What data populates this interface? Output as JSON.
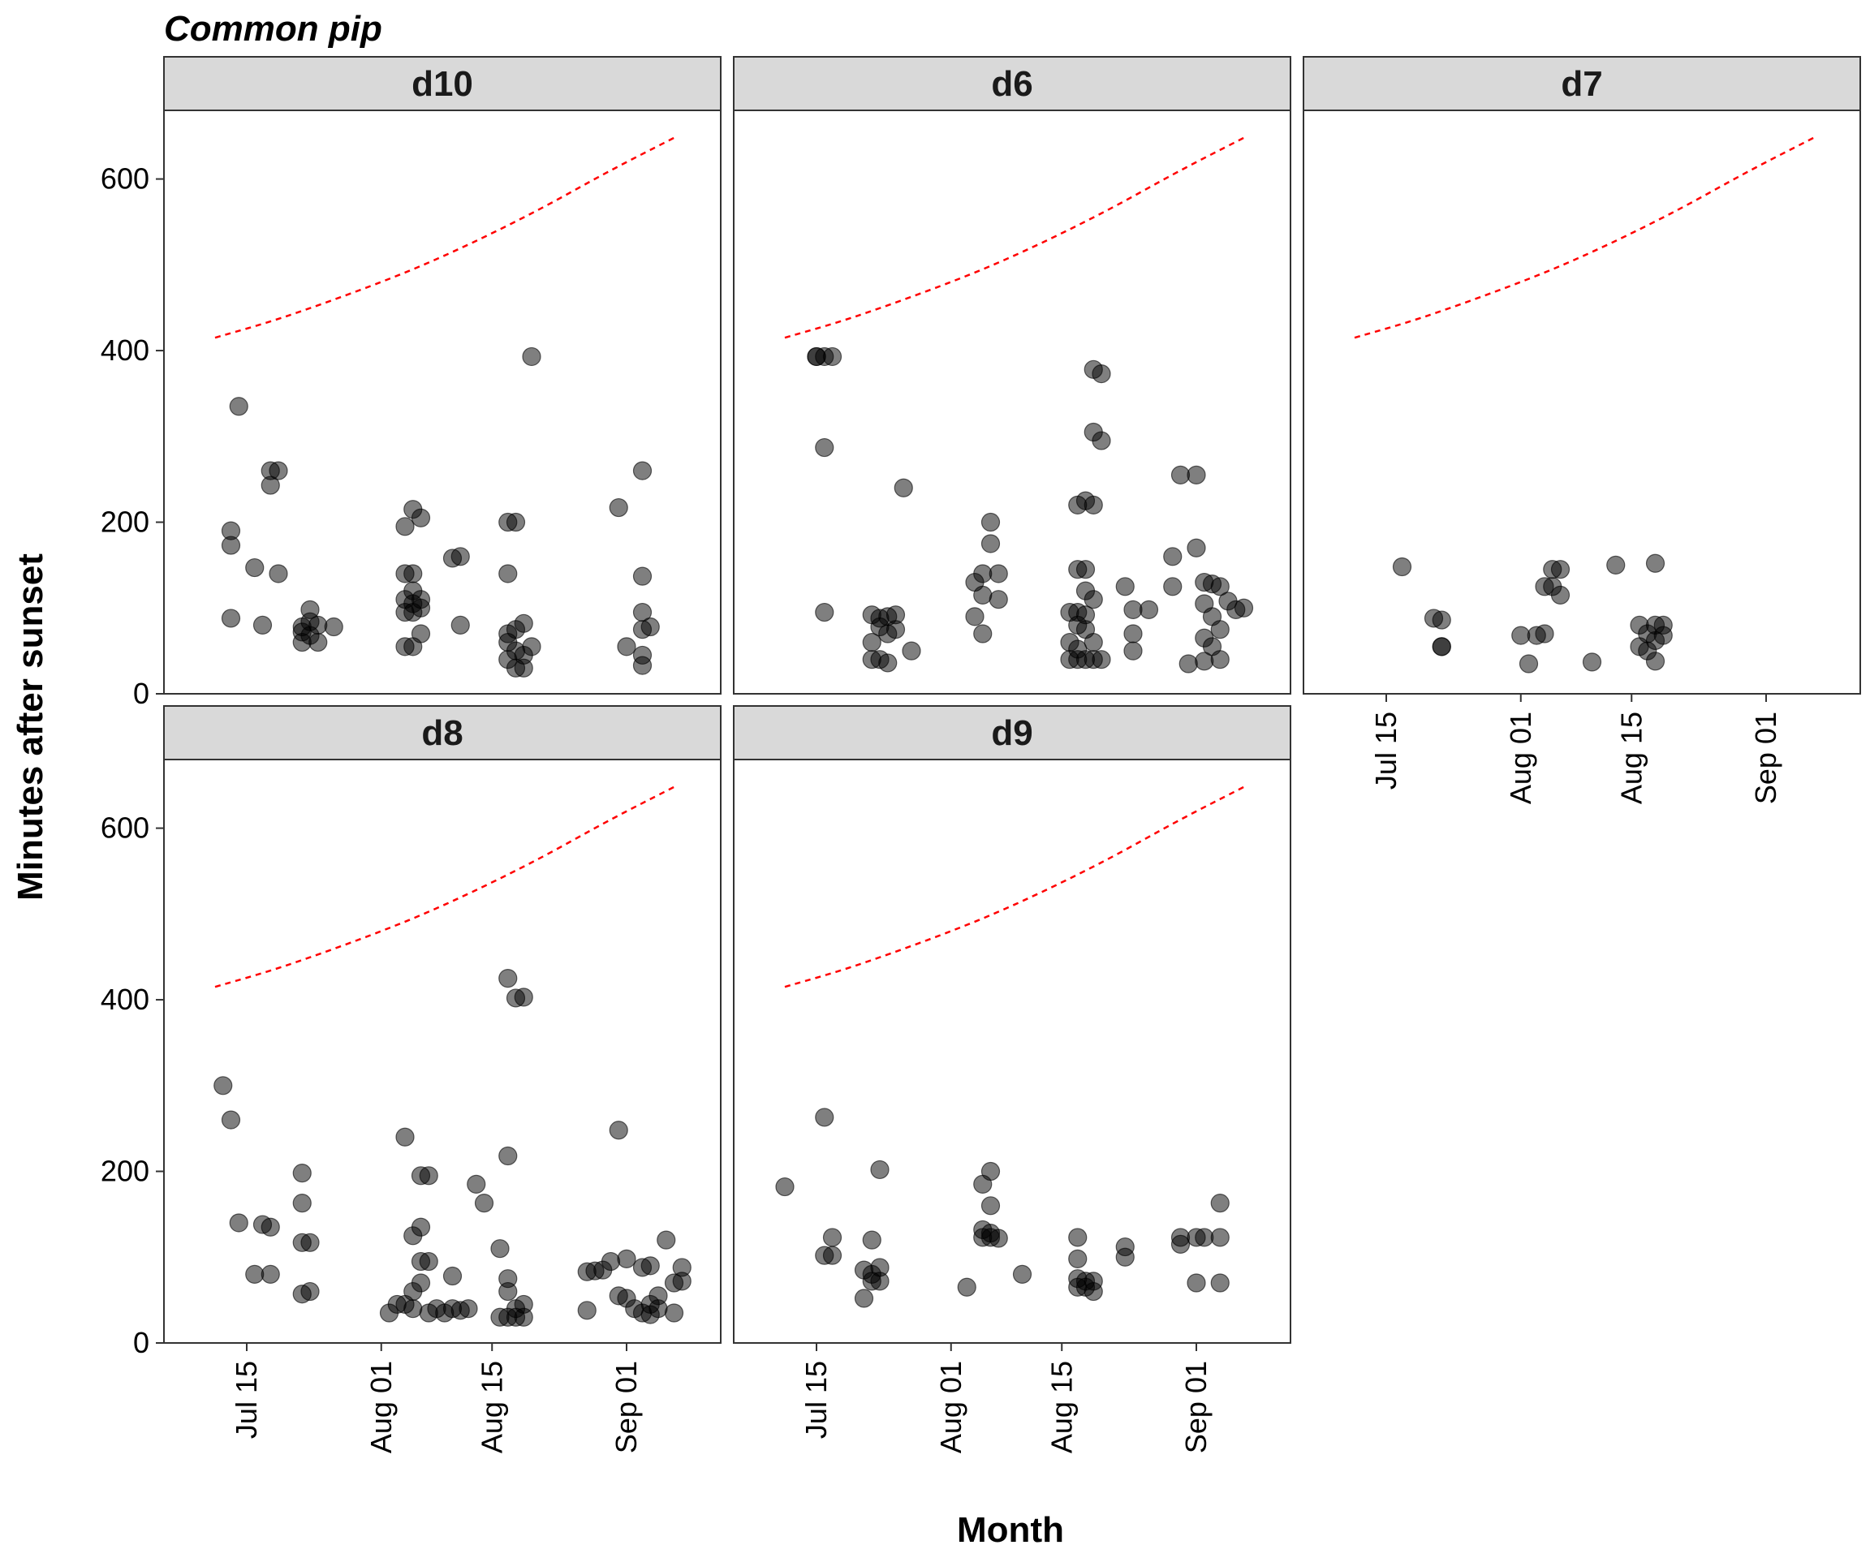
{
  "chart_data": {
    "type": "scatter",
    "title": "Common pip",
    "xlabel": "Month",
    "ylabel": "Minutes after sunset",
    "ylim": [
      0,
      680
    ],
    "yticks": [
      0,
      200,
      400,
      600
    ],
    "x_axis_type": "date",
    "xlim": [
      "2024-07-09",
      "2024-09-09"
    ],
    "xticks": [
      {
        "date": "2024-07-15",
        "label": "Jul 15"
      },
      {
        "date": "2024-08-01",
        "label": "Aug 01"
      },
      {
        "date": "2024-08-15",
        "label": "Aug 15"
      },
      {
        "date": "2024-09-01",
        "label": "Sep 01"
      }
    ],
    "grid": false,
    "point_color": "#000000",
    "point_opacity": 0.5,
    "reference_line": {
      "style": "dashed",
      "color": "#ff0000",
      "dates": [
        "2024-07-11",
        "2024-07-20",
        "2024-08-01",
        "2024-08-10",
        "2024-08-20",
        "2024-08-30",
        "2024-09-07"
      ],
      "values": [
        415,
        440,
        480,
        515,
        560,
        610,
        648
      ]
    },
    "panels": [
      {
        "label": "d10",
        "points": [
          [
            "2024-07-13",
            190
          ],
          [
            "2024-07-13",
            173
          ],
          [
            "2024-07-13",
            88
          ],
          [
            "2024-07-14",
            335
          ],
          [
            "2024-07-16",
            147
          ],
          [
            "2024-07-17",
            80
          ],
          [
            "2024-07-18",
            243
          ],
          [
            "2024-07-18",
            260
          ],
          [
            "2024-07-19",
            260
          ],
          [
            "2024-07-19",
            140
          ],
          [
            "2024-07-22",
            78
          ],
          [
            "2024-07-22",
            60
          ],
          [
            "2024-07-22",
            72
          ],
          [
            "2024-07-23",
            98
          ],
          [
            "2024-07-23",
            84
          ],
          [
            "2024-07-23",
            68
          ],
          [
            "2024-07-24",
            80
          ],
          [
            "2024-07-24",
            60
          ],
          [
            "2024-07-26",
            78
          ],
          [
            "2024-08-04",
            195
          ],
          [
            "2024-08-04",
            140
          ],
          [
            "2024-08-04",
            110
          ],
          [
            "2024-08-04",
            95
          ],
          [
            "2024-08-04",
            55
          ],
          [
            "2024-08-05",
            215
          ],
          [
            "2024-08-05",
            140
          ],
          [
            "2024-08-05",
            120
          ],
          [
            "2024-08-05",
            105
          ],
          [
            "2024-08-05",
            95
          ],
          [
            "2024-08-05",
            55
          ],
          [
            "2024-08-06",
            205
          ],
          [
            "2024-08-06",
            110
          ],
          [
            "2024-08-06",
            100
          ],
          [
            "2024-08-06",
            70
          ],
          [
            "2024-08-10",
            158
          ],
          [
            "2024-08-11",
            160
          ],
          [
            "2024-08-11",
            80
          ],
          [
            "2024-08-17",
            200
          ],
          [
            "2024-08-17",
            140
          ],
          [
            "2024-08-17",
            70
          ],
          [
            "2024-08-17",
            60
          ],
          [
            "2024-08-17",
            40
          ],
          [
            "2024-08-18",
            200
          ],
          [
            "2024-08-18",
            75
          ],
          [
            "2024-08-18",
            50
          ],
          [
            "2024-08-18",
            30
          ],
          [
            "2024-08-19",
            82
          ],
          [
            "2024-08-19",
            45
          ],
          [
            "2024-08-19",
            30
          ],
          [
            "2024-08-20",
            393
          ],
          [
            "2024-08-20",
            55
          ],
          [
            "2024-08-31",
            217
          ],
          [
            "2024-09-01",
            55
          ],
          [
            "2024-09-03",
            260
          ],
          [
            "2024-09-03",
            95
          ],
          [
            "2024-09-03",
            75
          ],
          [
            "2024-09-03",
            45
          ],
          [
            "2024-09-03",
            33
          ],
          [
            "2024-09-03",
            137
          ],
          [
            "2024-09-04",
            78
          ]
        ]
      },
      {
        "label": "d6",
        "points": [
          [
            "2024-07-15",
            393
          ],
          [
            "2024-07-15",
            393
          ],
          [
            "2024-07-16",
            393
          ],
          [
            "2024-07-17",
            393
          ],
          [
            "2024-07-16",
            287
          ],
          [
            "2024-07-16",
            95
          ],
          [
            "2024-07-22",
            92
          ],
          [
            "2024-07-22",
            60
          ],
          [
            "2024-07-22",
            40
          ],
          [
            "2024-07-23",
            88
          ],
          [
            "2024-07-23",
            78
          ],
          [
            "2024-07-23",
            40
          ],
          [
            "2024-07-24",
            90
          ],
          [
            "2024-07-24",
            70
          ],
          [
            "2024-07-24",
            36
          ],
          [
            "2024-07-25",
            92
          ],
          [
            "2024-07-25",
            75
          ],
          [
            "2024-07-26",
            240
          ],
          [
            "2024-07-27",
            50
          ],
          [
            "2024-08-04",
            130
          ],
          [
            "2024-08-04",
            90
          ],
          [
            "2024-08-05",
            140
          ],
          [
            "2024-08-05",
            115
          ],
          [
            "2024-08-05",
            70
          ],
          [
            "2024-08-06",
            200
          ],
          [
            "2024-08-06",
            175
          ],
          [
            "2024-08-07",
            140
          ],
          [
            "2024-08-07",
            110
          ],
          [
            "2024-08-16",
            95
          ],
          [
            "2024-08-16",
            60
          ],
          [
            "2024-08-16",
            40
          ],
          [
            "2024-08-17",
            220
          ],
          [
            "2024-08-17",
            145
          ],
          [
            "2024-08-17",
            95
          ],
          [
            "2024-08-17",
            80
          ],
          [
            "2024-08-17",
            52
          ],
          [
            "2024-08-17",
            40
          ],
          [
            "2024-08-18",
            225
          ],
          [
            "2024-08-18",
            145
          ],
          [
            "2024-08-18",
            120
          ],
          [
            "2024-08-18",
            92
          ],
          [
            "2024-08-18",
            75
          ],
          [
            "2024-08-18",
            40
          ],
          [
            "2024-08-19",
            378
          ],
          [
            "2024-08-19",
            305
          ],
          [
            "2024-08-19",
            220
          ],
          [
            "2024-08-19",
            110
          ],
          [
            "2024-08-19",
            60
          ],
          [
            "2024-08-19",
            40
          ],
          [
            "2024-08-20",
            373
          ],
          [
            "2024-08-20",
            295
          ],
          [
            "2024-08-20",
            40
          ],
          [
            "2024-08-23",
            125
          ],
          [
            "2024-08-24",
            98
          ],
          [
            "2024-08-24",
            70
          ],
          [
            "2024-08-24",
            50
          ],
          [
            "2024-08-26",
            98
          ],
          [
            "2024-08-29",
            160
          ],
          [
            "2024-08-29",
            125
          ],
          [
            "2024-08-30",
            255
          ],
          [
            "2024-08-31",
            35
          ],
          [
            "2024-09-01",
            255
          ],
          [
            "2024-09-01",
            170
          ],
          [
            "2024-09-02",
            130
          ],
          [
            "2024-09-02",
            105
          ],
          [
            "2024-09-02",
            65
          ],
          [
            "2024-09-02",
            38
          ],
          [
            "2024-09-03",
            128
          ],
          [
            "2024-09-03",
            90
          ],
          [
            "2024-09-03",
            55
          ],
          [
            "2024-09-04",
            125
          ],
          [
            "2024-09-04",
            75
          ],
          [
            "2024-09-04",
            40
          ],
          [
            "2024-09-05",
            108
          ],
          [
            "2024-09-06",
            98
          ],
          [
            "2024-09-07",
            100
          ]
        ]
      },
      {
        "label": "d7",
        "points": [
          [
            "2024-07-17",
            148
          ],
          [
            "2024-07-21",
            88
          ],
          [
            "2024-07-22",
            55
          ],
          [
            "2024-07-22",
            55
          ],
          [
            "2024-07-22",
            86
          ],
          [
            "2024-08-01",
            68
          ],
          [
            "2024-08-02",
            35
          ],
          [
            "2024-08-03",
            68
          ],
          [
            "2024-08-04",
            125
          ],
          [
            "2024-08-04",
            70
          ],
          [
            "2024-08-05",
            145
          ],
          [
            "2024-08-05",
            125
          ],
          [
            "2024-08-06",
            115
          ],
          [
            "2024-08-06",
            145
          ],
          [
            "2024-08-10",
            37
          ],
          [
            "2024-08-13",
            150
          ],
          [
            "2024-08-16",
            80
          ],
          [
            "2024-08-16",
            55
          ],
          [
            "2024-08-17",
            70
          ],
          [
            "2024-08-17",
            50
          ],
          [
            "2024-08-18",
            80
          ],
          [
            "2024-08-18",
            62
          ],
          [
            "2024-08-18",
            38
          ],
          [
            "2024-08-18",
            152
          ],
          [
            "2024-08-19",
            80
          ],
          [
            "2024-08-19",
            68
          ]
        ]
      },
      {
        "label": "d8",
        "points": [
          [
            "2024-07-12",
            300
          ],
          [
            "2024-07-13",
            260
          ],
          [
            "2024-07-14",
            140
          ],
          [
            "2024-07-16",
            80
          ],
          [
            "2024-07-17",
            138
          ],
          [
            "2024-07-18",
            135
          ],
          [
            "2024-07-18",
            80
          ],
          [
            "2024-07-22",
            198
          ],
          [
            "2024-07-22",
            163
          ],
          [
            "2024-07-22",
            117
          ],
          [
            "2024-07-23",
            117
          ],
          [
            "2024-07-22",
            57
          ],
          [
            "2024-07-23",
            60
          ],
          [
            "2024-08-02",
            35
          ],
          [
            "2024-08-03",
            45
          ],
          [
            "2024-08-04",
            240
          ],
          [
            "2024-08-04",
            45
          ],
          [
            "2024-08-05",
            125
          ],
          [
            "2024-08-05",
            60
          ],
          [
            "2024-08-05",
            40
          ],
          [
            "2024-08-06",
            195
          ],
          [
            "2024-08-06",
            135
          ],
          [
            "2024-08-06",
            95
          ],
          [
            "2024-08-06",
            70
          ],
          [
            "2024-08-07",
            195
          ],
          [
            "2024-08-07",
            95
          ],
          [
            "2024-08-07",
            35
          ],
          [
            "2024-08-08",
            40
          ],
          [
            "2024-08-09",
            35
          ],
          [
            "2024-08-10",
            40
          ],
          [
            "2024-08-10",
            78
          ],
          [
            "2024-08-11",
            38
          ],
          [
            "2024-08-12",
            40
          ],
          [
            "2024-08-13",
            185
          ],
          [
            "2024-08-14",
            163
          ],
          [
            "2024-08-16",
            110
          ],
          [
            "2024-08-16",
            30
          ],
          [
            "2024-08-17",
            425
          ],
          [
            "2024-08-17",
            218
          ],
          [
            "2024-08-17",
            75
          ],
          [
            "2024-08-17",
            60
          ],
          [
            "2024-08-17",
            30
          ],
          [
            "2024-08-18",
            402
          ],
          [
            "2024-08-18",
            40
          ],
          [
            "2024-08-18",
            30
          ],
          [
            "2024-08-19",
            403
          ],
          [
            "2024-08-19",
            45
          ],
          [
            "2024-08-19",
            30
          ],
          [
            "2024-08-27",
            83
          ],
          [
            "2024-08-27",
            38
          ],
          [
            "2024-08-28",
            84
          ],
          [
            "2024-08-29",
            85
          ],
          [
            "2024-08-30",
            95
          ],
          [
            "2024-08-31",
            248
          ],
          [
            "2024-08-31",
            55
          ],
          [
            "2024-09-01",
            98
          ],
          [
            "2024-09-01",
            52
          ],
          [
            "2024-09-02",
            40
          ],
          [
            "2024-09-03",
            88
          ],
          [
            "2024-09-03",
            35
          ],
          [
            "2024-09-04",
            90
          ],
          [
            "2024-09-04",
            45
          ],
          [
            "2024-09-04",
            33
          ],
          [
            "2024-09-05",
            55
          ],
          [
            "2024-09-05",
            40
          ],
          [
            "2024-09-06",
            120
          ],
          [
            "2024-09-07",
            70
          ],
          [
            "2024-09-07",
            35
          ],
          [
            "2024-09-08",
            88
          ],
          [
            "2024-09-08",
            72
          ]
        ]
      },
      {
        "label": "d9",
        "points": [
          [
            "2024-07-11",
            182
          ],
          [
            "2024-07-16",
            263
          ],
          [
            "2024-07-16",
            102
          ],
          [
            "2024-07-17",
            123
          ],
          [
            "2024-07-17",
            102
          ],
          [
            "2024-07-21",
            85
          ],
          [
            "2024-07-21",
            52
          ],
          [
            "2024-07-22",
            120
          ],
          [
            "2024-07-22",
            80
          ],
          [
            "2024-07-22",
            72
          ],
          [
            "2024-07-23",
            88
          ],
          [
            "2024-07-23",
            72
          ],
          [
            "2024-07-23",
            202
          ],
          [
            "2024-08-03",
            65
          ],
          [
            "2024-08-05",
            132
          ],
          [
            "2024-08-05",
            123
          ],
          [
            "2024-08-05",
            185
          ],
          [
            "2024-08-06",
            128
          ],
          [
            "2024-08-06",
            123
          ],
          [
            "2024-08-06",
            200
          ],
          [
            "2024-08-06",
            160
          ],
          [
            "2024-08-07",
            122
          ],
          [
            "2024-08-10",
            80
          ],
          [
            "2024-08-17",
            123
          ],
          [
            "2024-08-17",
            98
          ],
          [
            "2024-08-17",
            75
          ],
          [
            "2024-08-17",
            65
          ],
          [
            "2024-08-18",
            72
          ],
          [
            "2024-08-18",
            65
          ],
          [
            "2024-08-19",
            72
          ],
          [
            "2024-08-19",
            60
          ],
          [
            "2024-08-23",
            112
          ],
          [
            "2024-08-23",
            100
          ],
          [
            "2024-08-30",
            123
          ],
          [
            "2024-08-30",
            115
          ],
          [
            "2024-09-01",
            123
          ],
          [
            "2024-09-01",
            70
          ],
          [
            "2024-09-02",
            123
          ],
          [
            "2024-09-04",
            163
          ],
          [
            "2024-09-04",
            123
          ],
          [
            "2024-09-04",
            70
          ]
        ]
      }
    ]
  }
}
